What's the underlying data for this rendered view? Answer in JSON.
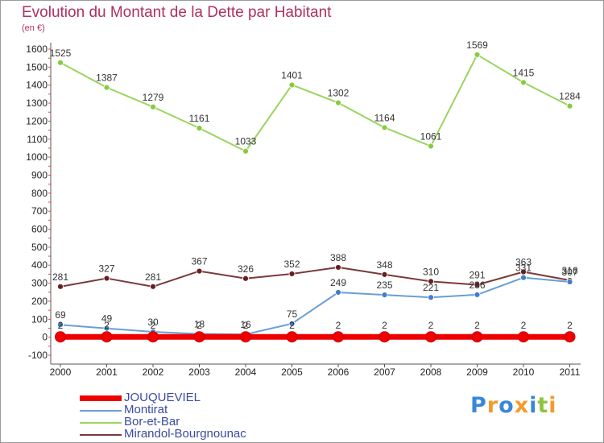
{
  "title": "Evolution du Montant de la Dette par Habitant",
  "subtitle": "(en €)",
  "brand": {
    "name": "Proxiti",
    "letters": [
      {
        "ch": "P",
        "color": "#3a87d8"
      },
      {
        "ch": "r",
        "color": "#f39b2b"
      },
      {
        "ch": "o",
        "color": "#3a87d8"
      },
      {
        "ch": "x",
        "color": "#f39b2b"
      },
      {
        "ch": "i",
        "color": "#3a87d8"
      },
      {
        "ch": "t",
        "color": "#8cc63f"
      },
      {
        "ch": "i",
        "color": "#f39b2b"
      }
    ]
  },
  "chart_data": {
    "type": "line",
    "categories": [
      "2000",
      "2001",
      "2002",
      "2003",
      "2004",
      "2005",
      "2006",
      "2007",
      "2008",
      "2009",
      "2010",
      "2011"
    ],
    "ylim": [
      -100,
      1600
    ],
    "yticks": [
      -100,
      0,
      100,
      200,
      300,
      400,
      500,
      600,
      700,
      800,
      900,
      1000,
      1100,
      1200,
      1300,
      1400,
      1500,
      1600
    ],
    "grid": false,
    "legend": "bottom-left",
    "series": [
      {
        "name": "JOUQUEVIEL",
        "color": "#ee0000",
        "point_color": "#ee0000",
        "values": [
          2,
          2,
          2,
          2,
          2,
          2,
          2,
          2,
          2,
          2,
          2,
          2
        ]
      },
      {
        "name": "Montirat",
        "color": "#6a9ed6",
        "point_color": "#3e7fc8",
        "values": [
          69,
          49,
          30,
          18,
          16,
          75,
          249,
          235,
          221,
          236,
          331,
          307
        ]
      },
      {
        "name": "Bor-et-Bar",
        "color": "#9ad45e",
        "point_color": "#86cc3e",
        "values": [
          1525,
          1387,
          1279,
          1161,
          1033,
          1401,
          1302,
          1164,
          1061,
          1569,
          1415,
          1284
        ]
      },
      {
        "name": "Mirandol-Bourgnounac",
        "color": "#7a3a3a",
        "point_color": "#6a1e1e",
        "values": [
          281,
          327,
          281,
          367,
          326,
          352,
          388,
          348,
          310,
          291,
          363,
          316
        ]
      }
    ],
    "labels": {
      "JOUQUEVIEL": [
        "2",
        "2",
        "2",
        "2",
        "2",
        "2",
        "2",
        "2",
        "2",
        "2",
        "2",
        "2"
      ],
      "Montirat": [
        "69",
        "49",
        "30",
        "18",
        "16",
        "75",
        "249",
        "235",
        "221",
        "236",
        "331",
        "307"
      ],
      "Bor-et-Bar": [
        "1525",
        "1387",
        "1279",
        "1161",
        "1033",
        "1401",
        "1302",
        "1164",
        "1061",
        "1569",
        "1415",
        "1284"
      ],
      "Mirandol-Bourgnounac": [
        "281",
        "327",
        "281",
        "367",
        "326",
        "352",
        "388",
        "348",
        "310",
        "291",
        "363",
        "316"
      ]
    }
  }
}
